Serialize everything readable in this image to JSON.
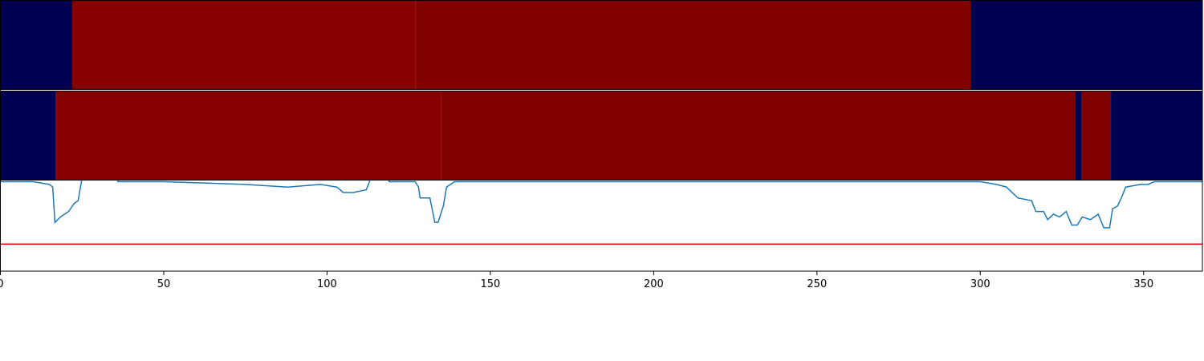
{
  "chart_data": {
    "type": "line",
    "xlim": [
      0,
      368
    ],
    "ylim": [
      0,
      1
    ],
    "xticks": [
      0,
      50,
      100,
      150,
      200,
      250,
      300,
      350
    ],
    "x": [
      0,
      10,
      15,
      16,
      16.7,
      18.4,
      20.9,
      22.6,
      23.8,
      24.8,
      25.5,
      35,
      36,
      50,
      75,
      88,
      98,
      103,
      105,
      108,
      112,
      113,
      114,
      118,
      119,
      127,
      128,
      128.5,
      131.5,
      133,
      134,
      135.6,
      136.6,
      139,
      142,
      300,
      305,
      308,
      311.5,
      315.7,
      317,
      319.4,
      320.6,
      322.4,
      324.3,
      326.3,
      328,
      329.7,
      331.2,
      333.7,
      336.1,
      337.8,
      339.6,
      340.5,
      342,
      343.2,
      344.5,
      349,
      351.4,
      353.3,
      368
    ],
    "series": [
      {
        "color": "#1f77b4",
        "values": [
          0.33,
          0.33,
          0.32,
          0.31,
          0.18,
          0.2,
          0.22,
          0.25,
          0.26,
          0.33,
          0.4,
          0.4,
          0.33,
          0.33,
          0.32,
          0.31,
          0.32,
          0.31,
          0.29,
          0.29,
          0.3,
          0.33,
          0.4,
          0.4,
          0.33,
          0.33,
          0.31,
          0.27,
          0.27,
          0.18,
          0.18,
          0.24,
          0.31,
          0.33,
          0.33,
          0.33,
          0.32,
          0.31,
          0.27,
          0.26,
          0.22,
          0.22,
          0.19,
          0.21,
          0.2,
          0.22,
          0.17,
          0.17,
          0.2,
          0.19,
          0.21,
          0.16,
          0.16,
          0.23,
          0.24,
          0.27,
          0.31,
          0.32,
          0.32,
          0.33,
          0.33
        ]
      }
    ],
    "hline": {
      "value": 0.1,
      "color": "#ff0000"
    },
    "bands": [
      {
        "segments": [
          {
            "start": 0,
            "end": 22,
            "color": "#000050"
          },
          {
            "start": 22,
            "end": 127,
            "color": "#880000"
          },
          {
            "start": 127,
            "end": 297,
            "color": "#800000"
          },
          {
            "start": 297,
            "end": 368,
            "color": "#000050"
          }
        ]
      },
      {
        "segments": [
          {
            "start": 0,
            "end": 17,
            "color": "#000050"
          },
          {
            "start": 17,
            "end": 135,
            "color": "#880000"
          },
          {
            "start": 135,
            "end": 329,
            "color": "#800000"
          },
          {
            "start": 329,
            "end": 331,
            "color": "#000050"
          },
          {
            "start": 331,
            "end": 340,
            "color": "#800000"
          },
          {
            "start": 340,
            "end": 368,
            "color": "#000050"
          }
        ]
      }
    ]
  }
}
